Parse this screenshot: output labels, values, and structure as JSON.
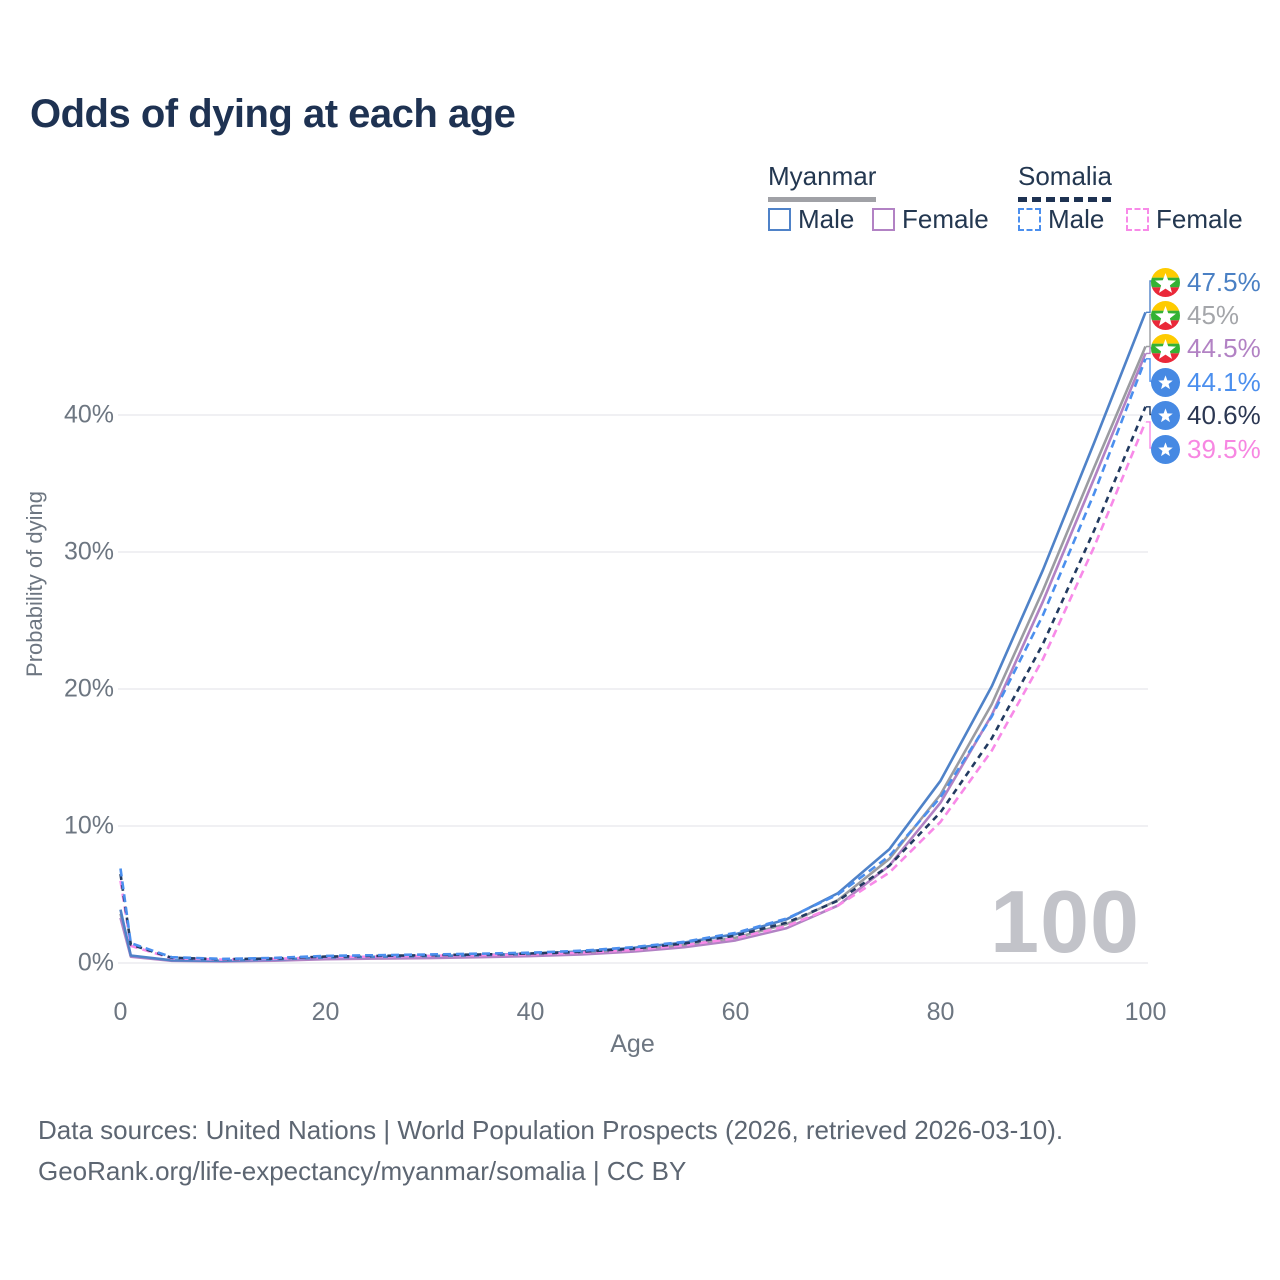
{
  "title": "Odds of dying at each age",
  "legend": {
    "groups": [
      {
        "label": "Myanmar",
        "underline_color": "#a0a1a6",
        "underline_style": "solid"
      },
      {
        "label": "Somalia",
        "underline_color": "#1e3252",
        "underline_style": "dashed"
      }
    ],
    "items": [
      {
        "group": "Myanmar",
        "label": "Male",
        "color": "#4f82c8",
        "line_style": "solid"
      },
      {
        "group": "Myanmar",
        "label": "Female",
        "color": "#b282c4",
        "line_style": "solid"
      },
      {
        "group": "Somalia",
        "label": "Male",
        "color": "#4b8fee",
        "line_style": "dashed"
      },
      {
        "group": "Somalia",
        "label": "Female",
        "color": "#f88ae8",
        "line_style": "dashed"
      }
    ]
  },
  "chart_data": {
    "type": "line",
    "xlabel": "Age",
    "ylabel": "Probability of dying",
    "watermark": "100",
    "x_ticks": [
      0,
      20,
      40,
      60,
      80,
      100
    ],
    "y_ticks": [
      {
        "value": 0,
        "label": "0%"
      },
      {
        "value": 10,
        "label": "10%"
      },
      {
        "value": 20,
        "label": "20%"
      },
      {
        "value": 30,
        "label": "30%"
      },
      {
        "value": 40,
        "label": "40%"
      }
    ],
    "xlim": [
      0,
      100
    ],
    "ylim": [
      0,
      48
    ],
    "grid": true,
    "x": [
      0,
      1,
      5,
      10,
      15,
      20,
      25,
      30,
      35,
      40,
      45,
      50,
      55,
      60,
      65,
      70,
      75,
      80,
      85,
      90,
      95,
      100
    ],
    "series": [
      {
        "name": "Myanmar",
        "country": "myanmar",
        "sex": "all",
        "color": "#9b9ca1",
        "dash": false,
        "values": [
          3.6,
          0.5,
          0.18,
          0.14,
          0.21,
          0.34,
          0.38,
          0.43,
          0.49,
          0.58,
          0.73,
          0.95,
          1.3,
          1.85,
          2.85,
          4.6,
          7.6,
          12.3,
          18.9,
          27.2,
          36.2,
          45.0
        ],
        "end_label": {
          "text": "45%",
          "color": "#a4a6aa",
          "flag": "myanmar",
          "order": 1
        }
      },
      {
        "name": "Myanmar Female",
        "country": "myanmar",
        "sex": "female",
        "color": "#b282c4",
        "dash": false,
        "values": [
          3.3,
          0.46,
          0.16,
          0.12,
          0.17,
          0.28,
          0.32,
          0.36,
          0.42,
          0.5,
          0.63,
          0.83,
          1.15,
          1.65,
          2.55,
          4.2,
          7.1,
          11.7,
          18.1,
          26.4,
          35.4,
          44.5
        ],
        "end_label": {
          "text": "44.5%",
          "color": "#b282c4",
          "flag": "myanmar",
          "order": 2
        }
      },
      {
        "name": "Myanmar Male",
        "country": "myanmar",
        "sex": "male",
        "color": "#4f82c8",
        "dash": false,
        "values": [
          3.9,
          0.55,
          0.2,
          0.16,
          0.25,
          0.4,
          0.45,
          0.5,
          0.57,
          0.68,
          0.85,
          1.1,
          1.5,
          2.1,
          3.2,
          5.1,
          8.3,
          13.3,
          20.2,
          28.7,
          38.0,
          47.5
        ],
        "end_label": {
          "text": "47.5%",
          "color": "#4a80c4",
          "flag": "myanmar",
          "order": 0
        }
      },
      {
        "name": "Somalia Female",
        "country": "somalia",
        "sex": "female",
        "color": "#f88ae8",
        "dash": true,
        "values": [
          6.0,
          1.25,
          0.35,
          0.25,
          0.3,
          0.42,
          0.47,
          0.52,
          0.57,
          0.63,
          0.75,
          0.95,
          1.3,
          1.8,
          2.7,
          4.2,
          6.6,
          10.3,
          15.5,
          22.2,
          30.4,
          39.5
        ],
        "end_label": {
          "text": "39.5%",
          "color": "#f787e2",
          "flag": "somalia",
          "order": 5
        }
      },
      {
        "name": "Somalia",
        "country": "somalia",
        "sex": "all",
        "color": "#223a60",
        "dash": true,
        "values": [
          6.5,
          1.35,
          0.38,
          0.28,
          0.33,
          0.47,
          0.52,
          0.57,
          0.62,
          0.69,
          0.82,
          1.05,
          1.42,
          2.0,
          2.95,
          4.55,
          7.1,
          11.0,
          16.4,
          23.3,
          31.6,
          40.6
        ],
        "end_label": {
          "text": "40.6%",
          "color": "#2b3752",
          "flag": "somalia",
          "order": 4
        }
      },
      {
        "name": "Somalia Male",
        "country": "somalia",
        "sex": "male",
        "color": "#4b8fee",
        "dash": true,
        "values": [
          6.9,
          1.45,
          0.42,
          0.3,
          0.37,
          0.52,
          0.57,
          0.62,
          0.68,
          0.75,
          0.9,
          1.15,
          1.55,
          2.2,
          3.25,
          5.0,
          7.8,
          12.1,
          18.0,
          25.4,
          34.3,
          44.1
        ],
        "end_label": {
          "text": "44.1%",
          "color": "#4b8fee",
          "flag": "somalia",
          "order": 3
        }
      }
    ]
  },
  "icons": {
    "myanmar_flag": {
      "yellow": "#fecb00",
      "green": "#34b233",
      "red": "#ea2839",
      "star": "#ffffff"
    },
    "somalia_flag": {
      "bg": "#4689e3",
      "star": "#ffffff"
    }
  },
  "colors": {
    "grid": "#ececef",
    "tick_text": "#6d7681",
    "title_text": "#1e3252",
    "watermark": "#c2c3c9",
    "footer_text": "#5d6672"
  },
  "footer": {
    "line1": "Data sources: United Nations | World Population Prospects (2026, retrieved 2026-03-10).",
    "line2": "GeoRank.org/life-expectancy/myanmar/somalia | CC BY"
  }
}
